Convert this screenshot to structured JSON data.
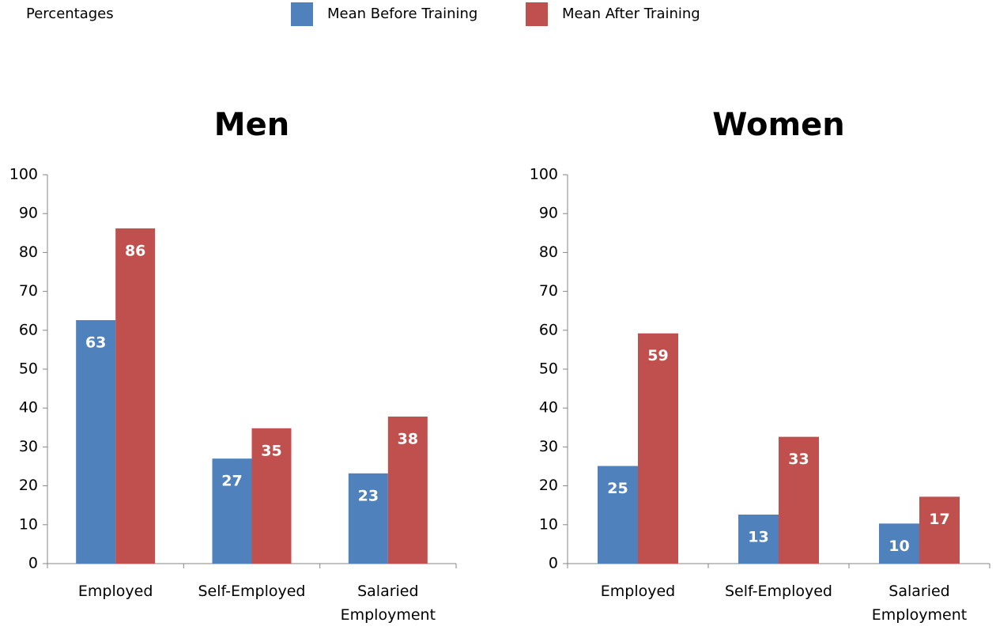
{
  "caption": "Percentages",
  "chart_data": [
    {
      "type": "bar",
      "title": "Men",
      "categories": [
        "Employed",
        "Self-Employed",
        "Salaried Employment"
      ],
      "series": [
        {
          "name": "Mean Before Training",
          "color": "#4f81bd",
          "values": [
            62.6,
            27.0,
            23.2
          ],
          "value_labels": [
            "63",
            "27",
            "23"
          ]
        },
        {
          "name": "Mean After Training",
          "color": "#c0504d",
          "values": [
            86.2,
            34.8,
            37.8
          ],
          "value_labels": [
            "86",
            "35",
            "38"
          ]
        }
      ],
      "ylim": [
        0,
        100
      ],
      "yticks": [
        0,
        10,
        20,
        30,
        40,
        50,
        60,
        70,
        80,
        90,
        100
      ],
      "grid": false
    },
    {
      "type": "bar",
      "title": "Women",
      "categories": [
        "Employed",
        "Self-Employed",
        "Salaried Employment"
      ],
      "series": [
        {
          "name": "Mean Before Training",
          "color": "#4f81bd",
          "values": [
            25.1,
            12.6,
            10.3
          ],
          "value_labels": [
            "25",
            "13",
            "10"
          ]
        },
        {
          "name": "Mean After Training",
          "color": "#c0504d",
          "values": [
            59.2,
            32.6,
            17.2
          ],
          "value_labels": [
            "59",
            "33",
            "17"
          ]
        }
      ],
      "ylim": [
        0,
        100
      ],
      "yticks": [
        0,
        10,
        20,
        30,
        40,
        50,
        60,
        70,
        80,
        90,
        100
      ],
      "grid": false
    }
  ]
}
